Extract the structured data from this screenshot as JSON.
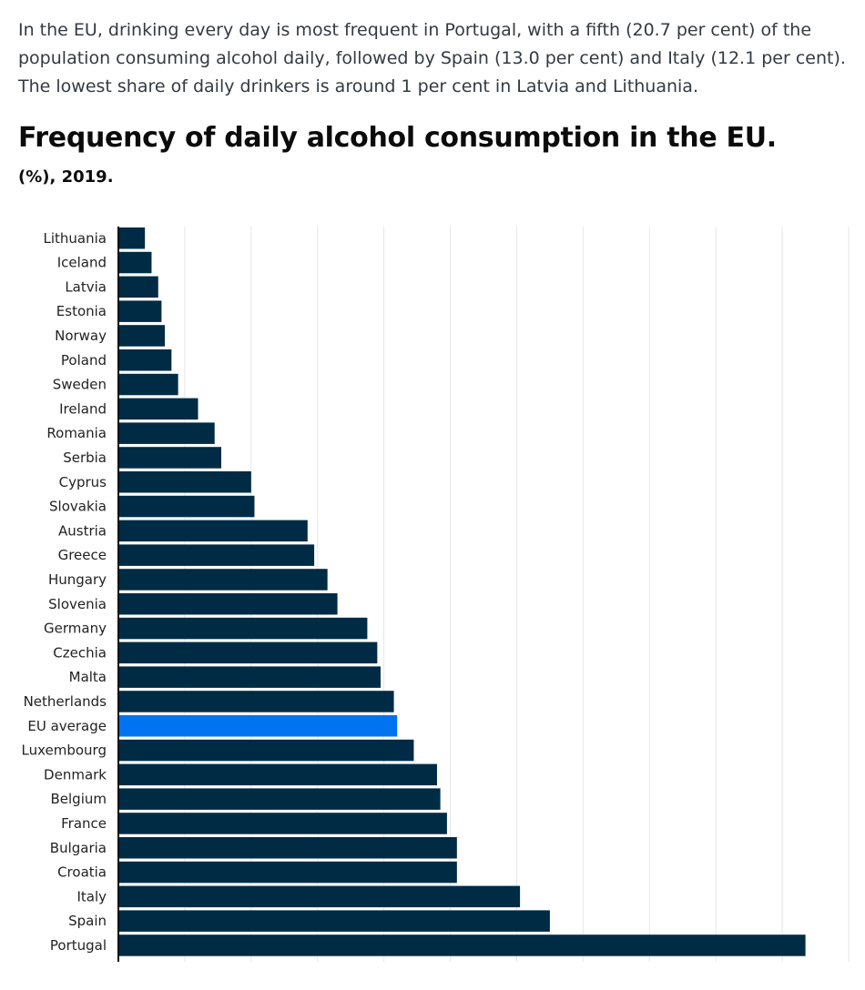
{
  "intro_text": "In the EU, drinking every day is most frequent in Portugal, with a fifth (20.7 per cent) of the population consuming alcohol daily, followed by Spain (13.0 per cent) and Italy (12.1 per cent). The lowest share of daily drinkers is around 1 per cent in Latvia and Lithuania.",
  "chart_data": {
    "type": "bar",
    "orientation": "horizontal",
    "title": "Frequency of daily alcohol consumption in the EU.",
    "subtitle": "(%), 2019.",
    "xlim": [
      0,
      22
    ],
    "grid": true,
    "categories": [
      "Lithuania",
      "Iceland",
      "Latvia",
      "Estonia",
      "Norway",
      "Poland",
      "Sweden",
      "Ireland",
      "Romania",
      "Serbia",
      "Cyprus",
      "Slovakia",
      "Austria",
      "Greece",
      "Hungary",
      "Slovenia",
      "Germany",
      "Czechia",
      "Malta",
      "Netherlands",
      "EU average",
      "Luxembourg",
      "Denmark",
      "Belgium",
      "France",
      "Bulgaria",
      "Croatia",
      "Italy",
      "Spain",
      "Portugal"
    ],
    "values": [
      0.8,
      1.0,
      1.2,
      1.3,
      1.4,
      1.6,
      1.8,
      2.4,
      2.9,
      3.1,
      4.0,
      4.1,
      5.7,
      5.9,
      6.3,
      6.6,
      7.5,
      7.8,
      7.9,
      8.3,
      8.4,
      8.9,
      9.6,
      9.7,
      9.9,
      10.2,
      10.2,
      12.1,
      13.0,
      20.7
    ],
    "highlight": "EU average",
    "colors": {
      "bar": "#002b45",
      "highlight": "#0074f0",
      "grid": "#e6e6e6",
      "axis": "#111111"
    }
  }
}
